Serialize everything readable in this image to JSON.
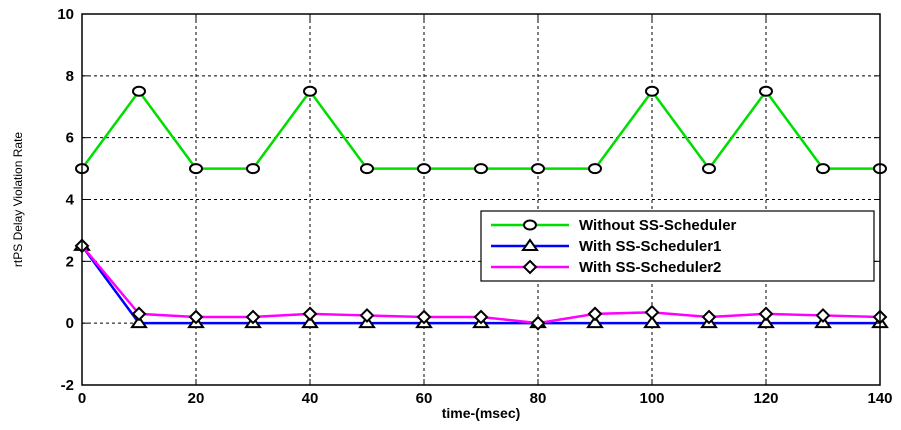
{
  "chart_data": {
    "type": "line",
    "xlabel": "time-(msec)",
    "ylabel": "rtPS Delay Violation Rate",
    "xlim": [
      0,
      140
    ],
    "ylim": [
      -2,
      10
    ],
    "xticks": [
      0,
      20,
      40,
      60,
      80,
      100,
      120,
      140
    ],
    "yticks": [
      -2,
      0,
      2,
      4,
      6,
      8,
      10
    ],
    "grid": true,
    "legend_position": "right-center",
    "x": [
      0,
      10,
      20,
      30,
      40,
      50,
      60,
      70,
      80,
      90,
      100,
      110,
      120,
      130,
      140
    ],
    "series": [
      {
        "name": "Without SS-Scheduler",
        "color": "#00dd00",
        "marker": "circle",
        "values": [
          5,
          7.5,
          5,
          5,
          7.5,
          5,
          5,
          5,
          5,
          5,
          7.5,
          5,
          7.5,
          5,
          5
        ]
      },
      {
        "name": "With SS-Scheduler1",
        "color": "#0000ff",
        "marker": "triangle",
        "values": [
          2.5,
          0,
          0,
          0,
          0,
          0,
          0,
          0,
          0,
          0,
          0,
          0,
          0,
          0,
          0
        ]
      },
      {
        "name": "With SS-Scheduler2",
        "color": "#ff00ff",
        "marker": "diamond",
        "values": [
          2.5,
          0.3,
          0.2,
          0.2,
          0.3,
          0.25,
          0.2,
          0.2,
          0,
          0.3,
          0.35,
          0.2,
          0.3,
          0.25,
          0.2
        ]
      }
    ]
  }
}
